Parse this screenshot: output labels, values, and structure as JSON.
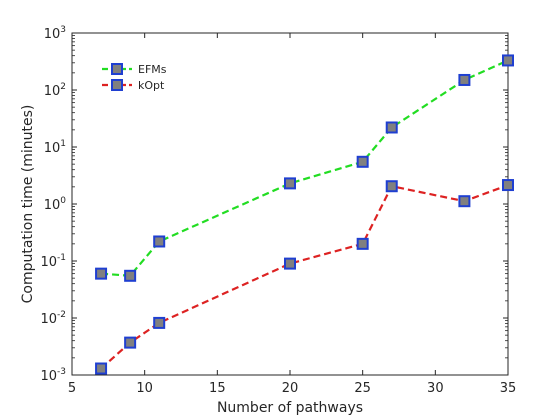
{
  "chart_data": {
    "type": "line",
    "xlabel": "Number of pathways",
    "ylabel": "Computation time (minutes)",
    "xlim": [
      5,
      35
    ],
    "ylim": [
      0.001,
      1000
    ],
    "yscale": "log",
    "grid": false,
    "legend_placement": "top-left",
    "x_ticks": [
      5,
      10,
      15,
      20,
      25,
      30,
      35
    ],
    "x_tick_labels": [
      "5",
      "10",
      "15",
      "20",
      "25",
      "30",
      "35"
    ],
    "y_ticks": [
      {
        "value": 0.001,
        "base": "10",
        "exp": "-3"
      },
      {
        "value": 0.01,
        "base": "10",
        "exp": "-2"
      },
      {
        "value": 0.1,
        "base": "10",
        "exp": "-1"
      },
      {
        "value": 1,
        "base": "10",
        "exp": "0"
      },
      {
        "value": 10,
        "base": "10",
        "exp": "1"
      },
      {
        "value": 100,
        "base": "10",
        "exp": "2"
      },
      {
        "value": 1000,
        "base": "10",
        "exp": "3"
      }
    ],
    "marker_face_color": "#808080",
    "marker_edge_color": "#1f3fd1",
    "series": [
      {
        "name": "EFMs",
        "color": "#22dd22",
        "line_style": "dashed",
        "x": [
          7,
          9,
          11,
          20,
          25,
          27,
          32,
          35
        ],
        "y": [
          0.06,
          0.055,
          0.22,
          2.3,
          5.5,
          22,
          150,
          330
        ]
      },
      {
        "name": "kOpt",
        "color": "#dd2222",
        "line_style": "dashed",
        "x": [
          7,
          9,
          11,
          20,
          25,
          27,
          32,
          35
        ],
        "y": [
          0.0013,
          0.0037,
          0.0082,
          0.09,
          0.2,
          2.05,
          1.12,
          2.15
        ]
      }
    ]
  }
}
